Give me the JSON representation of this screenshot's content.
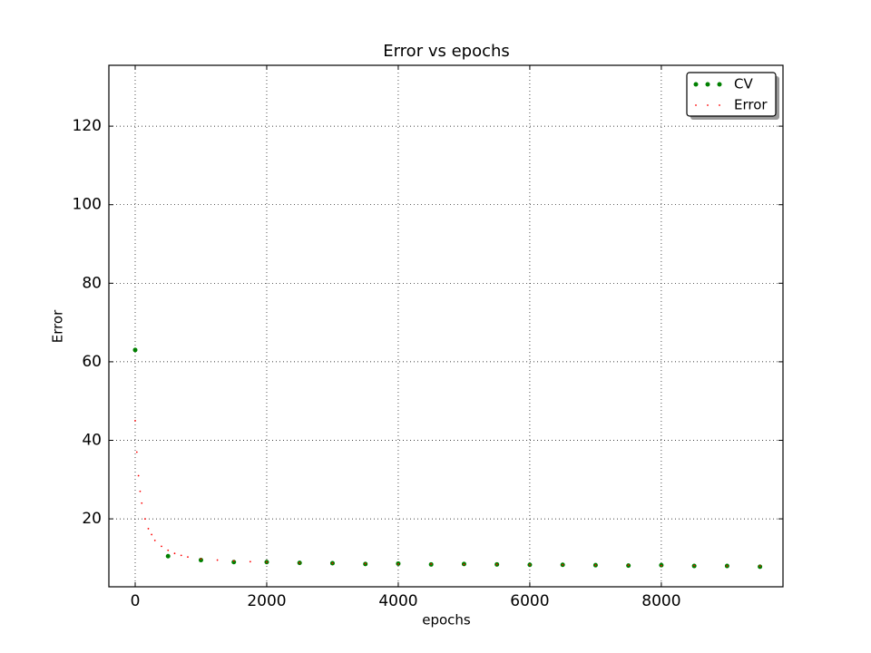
{
  "chart_data": {
    "type": "scatter",
    "title": "Error vs epochs",
    "x_label": "epochs",
    "y_label": "Error",
    "xlim": [
      -400,
      9850
    ],
    "ylim": [
      2.7,
      135.5
    ],
    "xticks": [
      0,
      2000,
      4000,
      6000,
      8000
    ],
    "yticks": [
      20,
      40,
      60,
      80,
      100,
      120
    ],
    "grid": true,
    "legend": "upper right",
    "series": [
      {
        "name": "CV",
        "color": "#008000",
        "marker_size": 2.5,
        "x": [
          0,
          500,
          1000,
          1500,
          2000,
          2500,
          3000,
          3500,
          4000,
          4500,
          5000,
          5500,
          6000,
          6500,
          7000,
          7500,
          8000,
          8500,
          9000,
          9500
        ],
        "values": [
          63,
          10.5,
          9.5,
          9,
          9,
          8.8,
          8.7,
          8.5,
          8.6,
          8.4,
          8.5,
          8.4,
          8.3,
          8.3,
          8.2,
          8.1,
          8.2,
          8.0,
          8.0,
          7.8
        ]
      },
      {
        "name": "Error",
        "color": "#ff0000",
        "marker_size": 0.9,
        "x": [
          0,
          25,
          50,
          75,
          100,
          150,
          200,
          250,
          300,
          400,
          500,
          600,
          700,
          800,
          1000,
          1250,
          1500,
          1750,
          2000,
          2500,
          3000,
          3500,
          4000,
          4500,
          5000,
          5500,
          6000,
          6500,
          7000,
          7500,
          8000,
          8500,
          9000,
          9500
        ],
        "values": [
          45,
          37,
          31,
          27,
          24,
          20,
          17.5,
          16,
          14.5,
          13,
          12,
          11.2,
          10.7,
          10.3,
          9.8,
          9.5,
          9.3,
          9.1,
          9.0,
          8.8,
          8.7,
          8.6,
          8.5,
          8.5,
          8.4,
          8.4,
          8.3,
          8.3,
          8.2,
          8.2,
          8.1,
          8.1,
          8.0,
          8.0
        ]
      }
    ]
  }
}
